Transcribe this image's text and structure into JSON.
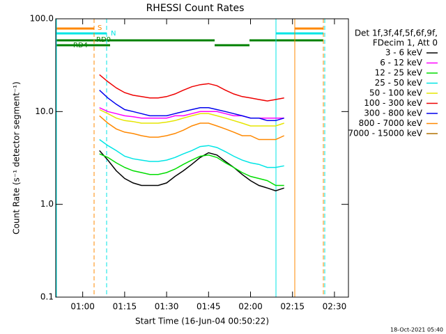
{
  "chart_data": {
    "type": "line",
    "title": "RHESSI Count Rates",
    "x_label": "Start Time (16-Jun-04 00:50:22)",
    "y_label": "Count Rate (s⁻¹ detector segment⁻¹)",
    "legend_header": [
      "Det 1f,3f,4f,5f,6f,9f,",
      "FDecim 1, Att 0"
    ],
    "annotations": [
      "S",
      "N",
      "RD0",
      "RD4"
    ],
    "footer": "18-Oct-2021 05:40",
    "log_y": true,
    "legend": "right",
    "xlim": [
      50.37,
      155
    ],
    "xticks": [
      {
        "value": 60,
        "label": "01:00"
      },
      {
        "value": 75,
        "label": "01:15"
      },
      {
        "value": 90,
        "label": "01:30"
      },
      {
        "value": 105,
        "label": "01:45"
      },
      {
        "value": 120,
        "label": "02:00"
      },
      {
        "value": 135,
        "label": "02:15"
      },
      {
        "value": 150,
        "label": "02:30"
      }
    ],
    "ylim": [
      0.1,
      100
    ],
    "yticks": [
      0.1,
      {
        "value": 1,
        "label": "1.0"
      },
      {
        "value": 10,
        "label": "10.0"
      },
      {
        "value": 100,
        "label": "100.0"
      }
    ],
    "x": [
      66,
      69,
      72,
      75,
      78,
      81,
      84,
      87,
      90,
      93,
      96,
      99,
      102,
      105,
      108,
      111,
      114,
      117,
      120,
      123,
      126,
      129,
      132
    ],
    "series": [
      {
        "name": "3 - 6 keV",
        "color": "#000000",
        "values": [
          3.8,
          3,
          2.3,
          1.9,
          1.7,
          1.6,
          1.6,
          1.6,
          1.7,
          2,
          2.3,
          2.7,
          3.2,
          3.6,
          3.4,
          2.9,
          2.5,
          2.1,
          1.8,
          1.6,
          1.5,
          1.4,
          1.5
        ]
      },
      {
        "name": "6 - 12 keV",
        "color": "#ff00ff",
        "values": [
          11,
          10,
          9.5,
          9,
          8.8,
          8.5,
          8.5,
          8.5,
          8.5,
          9,
          9,
          9.5,
          10,
          10,
          10,
          9.5,
          9,
          9,
          8.5,
          8.5,
          8.5,
          8.5,
          8.5
        ]
      },
      {
        "name": "12 - 25 keV",
        "color": "#00dd00",
        "values": [
          3.5,
          3.2,
          2.8,
          2.5,
          2.3,
          2.2,
          2.1,
          2.1,
          2.2,
          2.4,
          2.7,
          3,
          3.3,
          3.4,
          3.2,
          2.8,
          2.5,
          2.2,
          2,
          1.9,
          1.8,
          1.6,
          1.6
        ]
      },
      {
        "name": "25 - 50 keV",
        "color": "#00e5e5",
        "values": [
          5,
          4.3,
          3.8,
          3.3,
          3.1,
          3,
          2.9,
          2.9,
          3,
          3.2,
          3.5,
          3.8,
          4.2,
          4.3,
          4.1,
          3.7,
          3.3,
          3,
          2.8,
          2.7,
          2.5,
          2.5,
          2.6
        ]
      },
      {
        "name": "50 - 100 keV",
        "color": "#e5e500",
        "values": [
          10.5,
          9.5,
          8.5,
          8,
          7.8,
          7.5,
          7.5,
          7.5,
          7.7,
          8,
          8.5,
          9,
          9.5,
          9.5,
          9,
          8.5,
          8,
          7.5,
          7,
          7,
          7,
          7,
          7.5
        ]
      },
      {
        "name": "100 - 300 keV",
        "color": "#ee0000",
        "values": [
          25,
          21,
          18,
          16,
          15,
          14.5,
          14,
          14,
          14.5,
          15.5,
          17,
          18.5,
          19.5,
          20,
          19,
          17,
          15.5,
          14.5,
          14,
          13.5,
          13,
          13.5,
          14
        ]
      },
      {
        "name": "300 - 800 keV",
        "color": "#0000ee",
        "values": [
          17,
          14,
          12,
          10.5,
          10,
          9.5,
          9,
          9,
          9,
          9.5,
          10,
          10.5,
          11,
          11,
          10.5,
          10,
          9.5,
          9,
          8.5,
          8.5,
          8,
          8,
          8.5
        ]
      },
      {
        "name": "800 - 7000 keV",
        "color": "#ff8800",
        "values": [
          9,
          7.5,
          6.5,
          6,
          5.8,
          5.5,
          5.3,
          5.3,
          5.5,
          5.8,
          6.3,
          7,
          7.5,
          7.5,
          7,
          6.5,
          6,
          5.5,
          5.5,
          5,
          5,
          5,
          5.5
        ]
      },
      {
        "name": "7000 - 15000 keV",
        "color": "#b07000",
        "values": [
          null,
          null,
          null,
          null,
          null,
          null,
          null,
          null,
          null,
          null,
          null,
          null,
          null,
          null,
          null,
          null,
          null,
          null,
          null,
          null,
          null,
          null,
          null
        ]
      }
    ]
  }
}
